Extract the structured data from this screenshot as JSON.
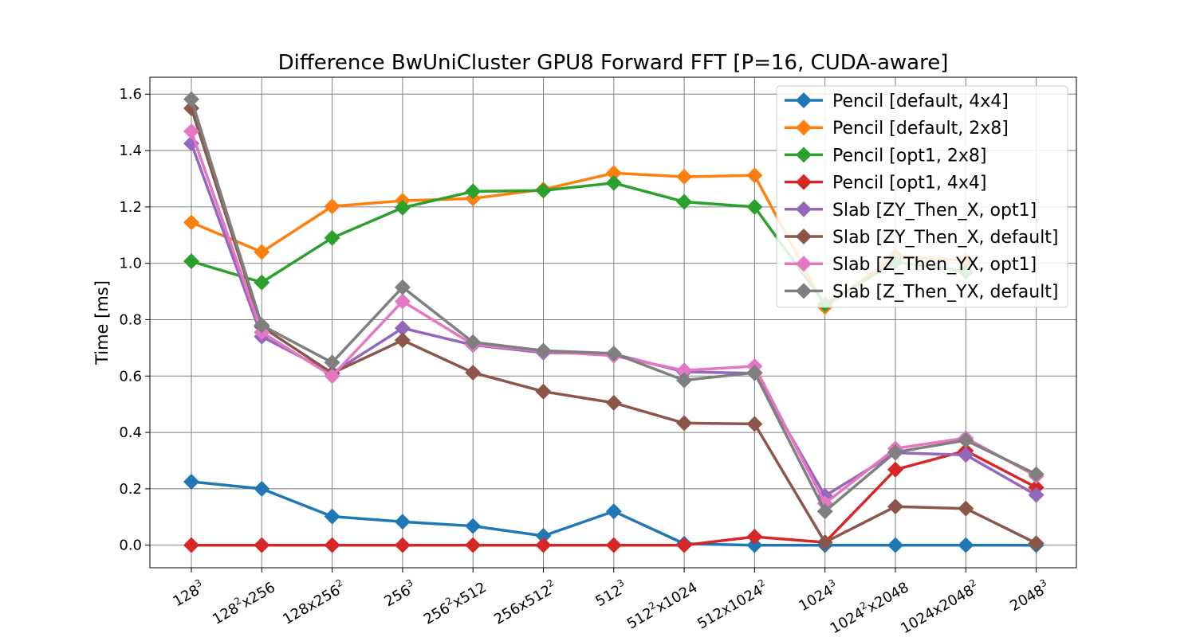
{
  "chart_data": {
    "type": "line",
    "title": "Difference BwUniCluster GPU8 Forward FFT [P=16, CUDA-aware]",
    "xlabel": "",
    "ylabel": "Time [ms]",
    "ylim": [
      -0.08,
      1.66
    ],
    "yticks": [
      "0.0",
      "0.2",
      "0.4",
      "0.6",
      "0.8",
      "1.0",
      "1.2",
      "1.4",
      "1.6"
    ],
    "grid": true,
    "legend_position": "top-right",
    "categories": [
      {
        "base": "128",
        "sup": "3",
        "rest": "",
        "sup2": ""
      },
      {
        "base": "128",
        "sup": "2",
        "rest": "x256",
        "sup2": ""
      },
      {
        "base": "128x256",
        "sup": "2",
        "rest": "",
        "sup2": ""
      },
      {
        "base": "256",
        "sup": "3",
        "rest": "",
        "sup2": ""
      },
      {
        "base": "256",
        "sup": "2",
        "rest": "x512",
        "sup2": ""
      },
      {
        "base": "256x512",
        "sup": "2",
        "rest": "",
        "sup2": ""
      },
      {
        "base": "512",
        "sup": "3",
        "rest": "",
        "sup2": ""
      },
      {
        "base": "512",
        "sup": "2",
        "rest": "x1024",
        "sup2": ""
      },
      {
        "base": "512x1024",
        "sup": "2",
        "rest": "",
        "sup2": ""
      },
      {
        "base": "1024",
        "sup": "3",
        "rest": "",
        "sup2": ""
      },
      {
        "base": "1024",
        "sup": "2",
        "rest": "x2048",
        "sup2": ""
      },
      {
        "base": "1024x2048",
        "sup": "2",
        "rest": "",
        "sup2": ""
      },
      {
        "base": "2048",
        "sup": "3",
        "rest": "",
        "sup2": ""
      }
    ],
    "series": [
      {
        "name": "Pencil [default, 4x4]",
        "color": "#1f77b4",
        "values": [
          0.225,
          0.2,
          0.102,
          0.083,
          0.068,
          0.033,
          0.12,
          0.005,
          0.0,
          0.0,
          0.0,
          0.0,
          0.0
        ]
      },
      {
        "name": "Pencil [default, 2x8]",
        "color": "#ff7f0e",
        "values": [
          1.145,
          1.04,
          1.202,
          1.222,
          1.23,
          1.262,
          1.32,
          1.307,
          1.312,
          0.845,
          1.025,
          1.01,
          null
        ]
      },
      {
        "name": "Pencil [opt1, 2x8]",
        "color": "#2ca02c",
        "values": [
          1.007,
          0.932,
          1.09,
          1.197,
          1.255,
          1.258,
          1.285,
          1.218,
          1.2,
          0.855,
          1.005,
          0.97,
          null
        ]
      },
      {
        "name": "Pencil [opt1, 4x4]",
        "color": "#d62728",
        "values": [
          0.0,
          0.0,
          0.0,
          0.0,
          0.0,
          0.0,
          0.0,
          0.0,
          0.03,
          0.01,
          0.268,
          0.335,
          0.205
        ]
      },
      {
        "name": "Slab [ZY_Then_X, opt1]",
        "color": "#9467bd",
        "values": [
          1.425,
          0.74,
          0.61,
          0.77,
          0.71,
          0.683,
          0.678,
          0.615,
          0.61,
          0.175,
          0.328,
          0.32,
          0.178
        ]
      },
      {
        "name": "Slab [ZY_Then_X, default]",
        "color": "#8c564b",
        "values": [
          1.55,
          0.775,
          0.61,
          0.727,
          0.612,
          0.545,
          0.505,
          0.433,
          0.43,
          0.01,
          0.137,
          0.13,
          0.007
        ]
      },
      {
        "name": "Slab [Z_Then_YX, opt1]",
        "color": "#e377c2",
        "values": [
          1.468,
          0.755,
          0.6,
          0.865,
          0.712,
          0.688,
          0.672,
          0.62,
          0.635,
          0.148,
          0.343,
          0.38,
          0.245
        ]
      },
      {
        "name": "Slab [Z_Then_YX, default]",
        "color": "#7f7f7f",
        "values": [
          1.582,
          0.78,
          0.648,
          0.915,
          0.72,
          0.69,
          0.68,
          0.585,
          0.612,
          0.12,
          0.33,
          0.372,
          0.252
        ]
      }
    ]
  }
}
